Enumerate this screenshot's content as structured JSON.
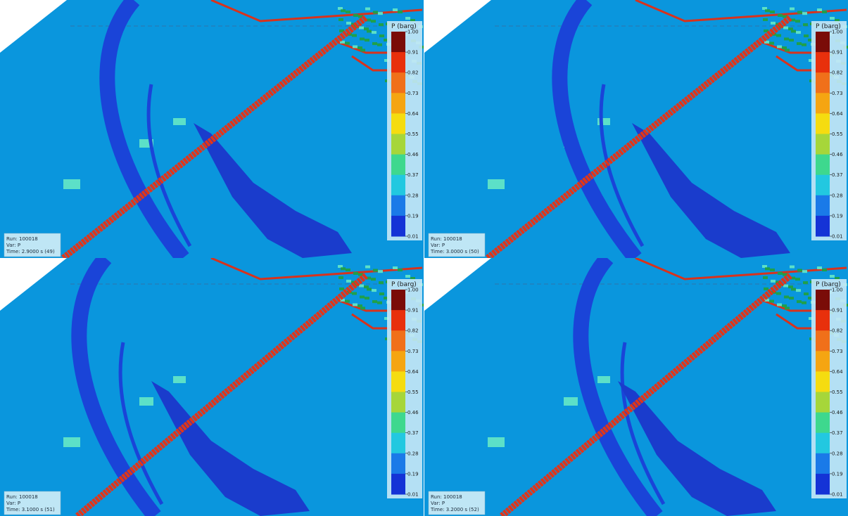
{
  "panels": [
    {
      "run": "Run: 100018",
      "var": "Var: P",
      "time": "Time: 2.9000 s (49)"
    },
    {
      "run": "Run: 100018",
      "var": "Var: P",
      "time": "Time: 3.0000 s (50)"
    },
    {
      "run": "Run: 100018",
      "var": "Var: P",
      "time": "Time: 3.1000 s (51)"
    },
    {
      "run": "Run: 100018",
      "var": "Var: P",
      "time": "Time: 3.2000 s (52)"
    }
  ],
  "legend": {
    "title": "P (barg)",
    "labels": [
      "1.00",
      "0.91",
      "0.82",
      "0.73",
      "0.64",
      "0.55",
      "0.46",
      "0.37",
      "0.28",
      "0.19",
      "0.01"
    ],
    "colors": [
      "#7a0c08",
      "#e8300c",
      "#f0701a",
      "#f5a512",
      "#f5dc10",
      "#a6d63a",
      "#3ed88e",
      "#22c8e0",
      "#1a7ae8",
      "#1433d6",
      "#0a1470"
    ]
  }
}
